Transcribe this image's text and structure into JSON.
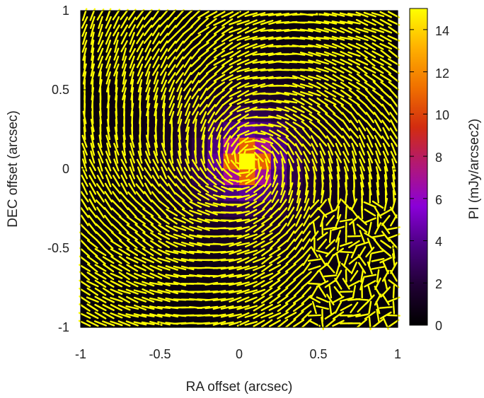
{
  "chart_data": {
    "type": "heatmap",
    "title": "",
    "xlabel": "RA offset  (arcsec)",
    "ylabel": "DEC offset (arcsec)",
    "xlim": [
      -1,
      1
    ],
    "ylim": [
      -1,
      1
    ],
    "x_ticks": [
      "-1",
      "-0.5",
      "0",
      "0.5",
      "1"
    ],
    "y_ticks": [
      "1",
      "0.5",
      "0",
      "-0.5",
      "-1"
    ],
    "grid": false,
    "colorbar": {
      "label": "PI (mJy/arcsec2)",
      "range": [
        0,
        15
      ],
      "ticks": [
        "14",
        "12",
        "10",
        "8",
        "6",
        "4",
        "2",
        "0"
      ],
      "colormap": [
        "#000000",
        "#200033",
        "#4a0080",
        "#8a00d8",
        "#b0177a",
        "#d22c10",
        "#f07000",
        "#ffb000",
        "#ffff00"
      ]
    },
    "map_pixel_size_arcsec": 0.1,
    "map_peak": {
      "ra": 0.05,
      "dec": 0.05,
      "value": 14.5
    },
    "vector_field": {
      "color": "#ffff00",
      "pattern": "azimuthal (circular) polarization vectors around the central source",
      "spacing_arcsec": 0.05,
      "vector_length_arcsec": 0.075
    }
  }
}
